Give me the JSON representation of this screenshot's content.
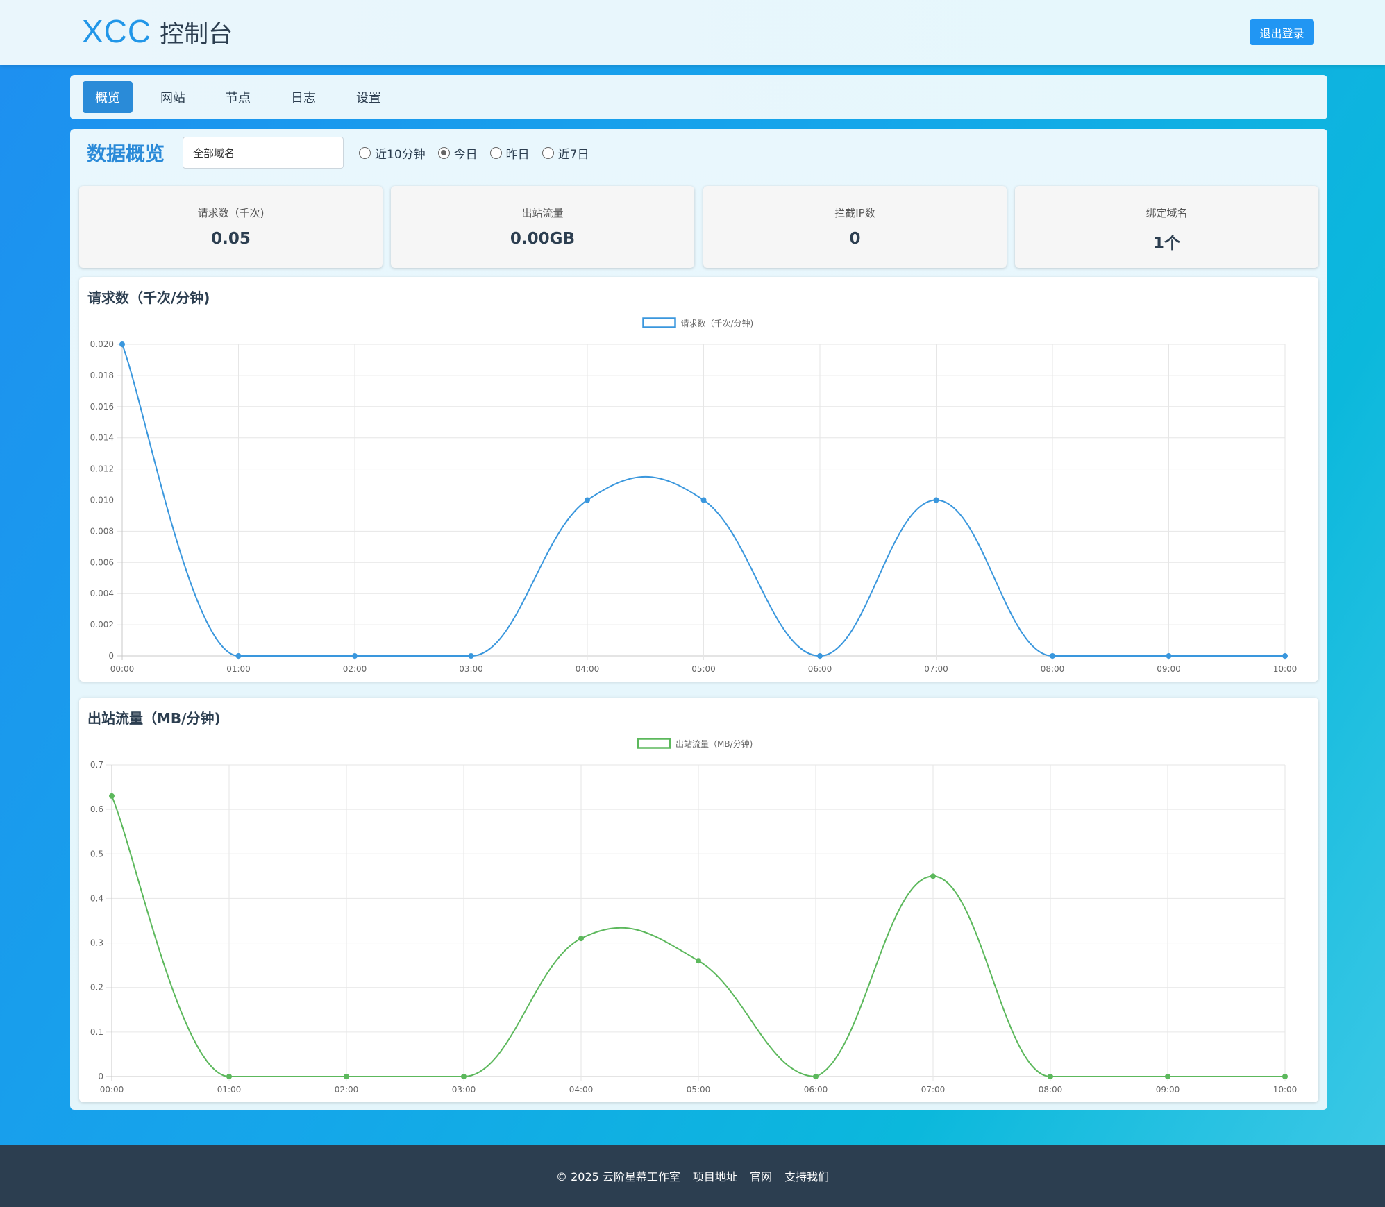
{
  "header": {
    "brand": "XCC",
    "title": "控制台",
    "logout_label": "退出登录"
  },
  "nav": {
    "items": [
      {
        "label": "概览",
        "active": true
      },
      {
        "label": "网站",
        "active": false
      },
      {
        "label": "节点",
        "active": false
      },
      {
        "label": "日志",
        "active": false
      },
      {
        "label": "设置",
        "active": false
      }
    ]
  },
  "overview": {
    "title": "数据概览",
    "domain_select": {
      "value": "全部域名"
    },
    "ranges": [
      {
        "label": "近10分钟",
        "checked": false
      },
      {
        "label": "今日",
        "checked": true
      },
      {
        "label": "昨日",
        "checked": false
      },
      {
        "label": "近7日",
        "checked": false
      }
    ]
  },
  "stats": [
    {
      "label": "请求数（千次)",
      "value": "0.05"
    },
    {
      "label": "出站流量",
      "value": "0.00GB"
    },
    {
      "label": "拦截IP数",
      "value": "0"
    },
    {
      "label": "绑定域名",
      "value": "1个"
    }
  ],
  "chart_data": [
    {
      "type": "line",
      "title": "请求数（千次/分钟)",
      "legend": "请求数（千次/分钟)",
      "color": "#3a97dd",
      "x": [
        "00:00",
        "01:00",
        "02:00",
        "03:00",
        "04:00",
        "05:00",
        "06:00",
        "07:00",
        "08:00",
        "09:00",
        "10:00"
      ],
      "series": [
        {
          "name": "请求数（千次/分钟)",
          "values": [
            0.02,
            0,
            0,
            0,
            0.01,
            0.01,
            0,
            0.01,
            0,
            0,
            0
          ]
        }
      ],
      "ylim": [
        0,
        0.02
      ],
      "yticks": [
        "0",
        "0.002",
        "0.004",
        "0.006",
        "0.008",
        "0.010",
        "0.012",
        "0.014",
        "0.016",
        "0.018",
        "0.020"
      ],
      "grid": true,
      "legend_position": "top-center"
    },
    {
      "type": "line",
      "title": "出站流量（MB/分钟)",
      "legend": "出站流量（MB/分钟)",
      "color": "#5cb85c",
      "x": [
        "00:00",
        "01:00",
        "02:00",
        "03:00",
        "04:00",
        "05:00",
        "06:00",
        "07:00",
        "08:00",
        "09:00",
        "10:00"
      ],
      "series": [
        {
          "name": "出站流量（MB/分钟)",
          "values": [
            0.63,
            0,
            0,
            0,
            0.31,
            0.26,
            0,
            0.45,
            0,
            0,
            0
          ]
        }
      ],
      "ylim": [
        0,
        0.7
      ],
      "yticks": [
        "0",
        "0.1",
        "0.2",
        "0.3",
        "0.4",
        "0.5",
        "0.6",
        "0.7"
      ],
      "grid": true,
      "legend_position": "top-center"
    }
  ],
  "footer": {
    "copyright": "© 2025 云阶星幕工作室",
    "links": [
      "项目地址",
      "官网",
      "支持我们"
    ]
  }
}
